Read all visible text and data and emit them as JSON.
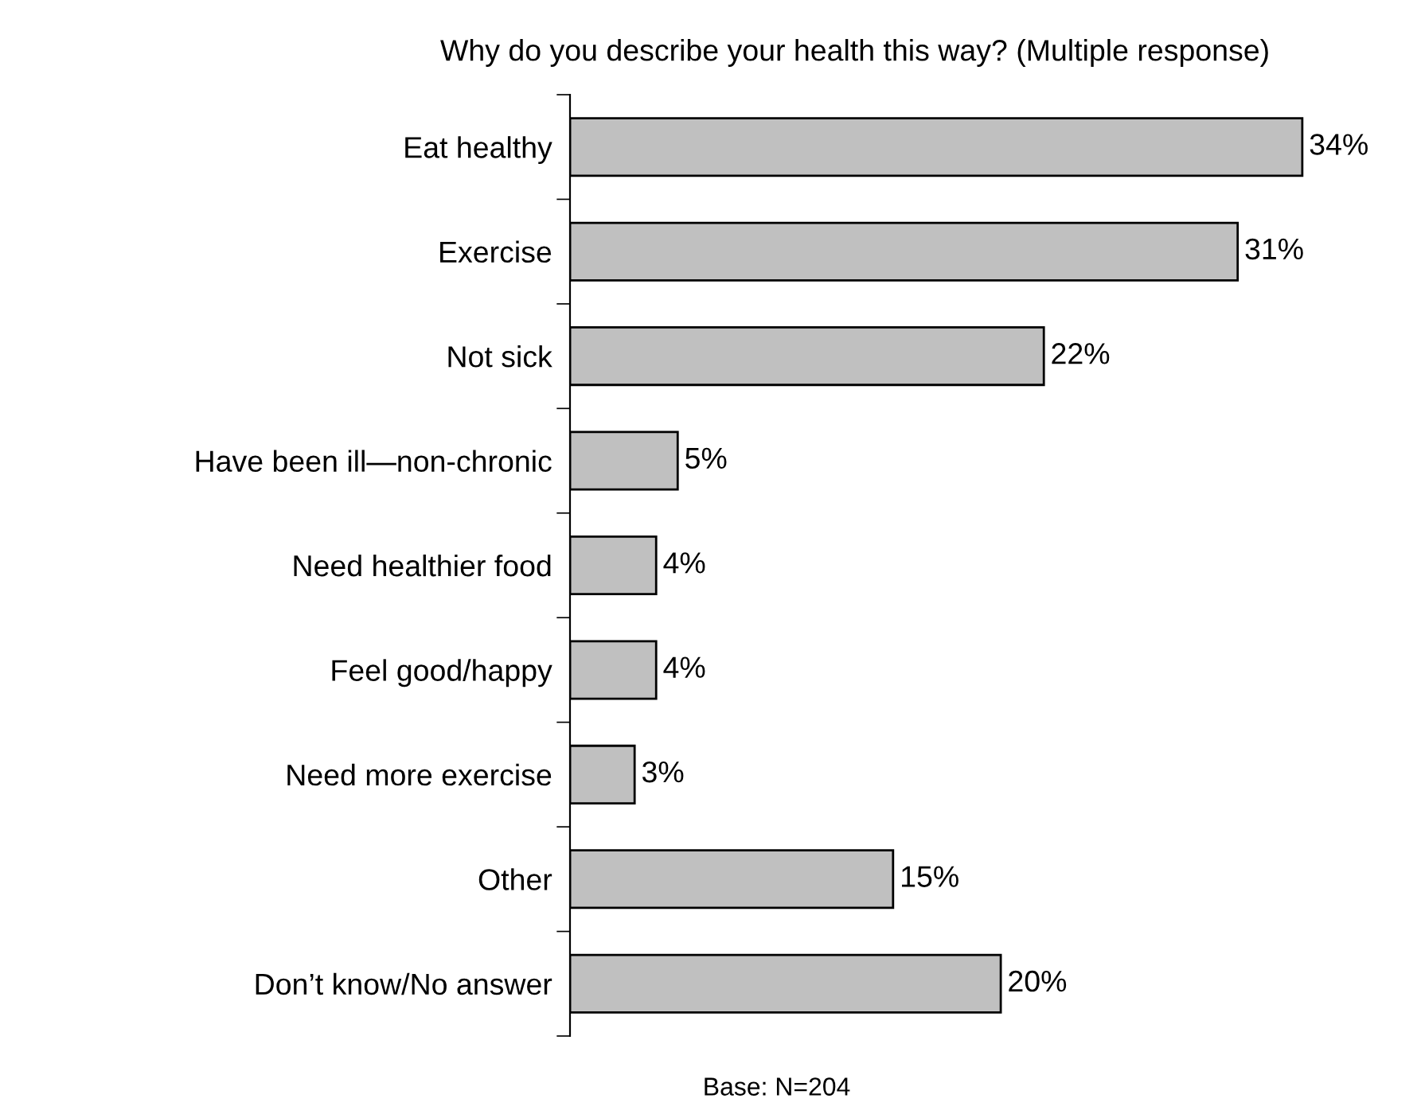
{
  "chart_data": {
    "type": "bar",
    "orientation": "horizontal",
    "title": "Why do you describe your health this way? (Multiple response)",
    "categories": [
      "Eat healthy",
      "Exercise",
      "Not sick",
      "Have been ill—non-chronic",
      "Need healthier food",
      "Feel good/happy",
      "Need more exercise",
      "Other",
      "Don’t know/No answer"
    ],
    "values": [
      34,
      31,
      22,
      5,
      4,
      4,
      3,
      15,
      20
    ],
    "value_labels": [
      "34%",
      "31%",
      "22%",
      "5%",
      "4%",
      "4%",
      "3%",
      "15%",
      "20%"
    ],
    "color": "#c0c0c0",
    "annotations": [
      "Base: N=204"
    ],
    "grid": false,
    "legend": false
  }
}
